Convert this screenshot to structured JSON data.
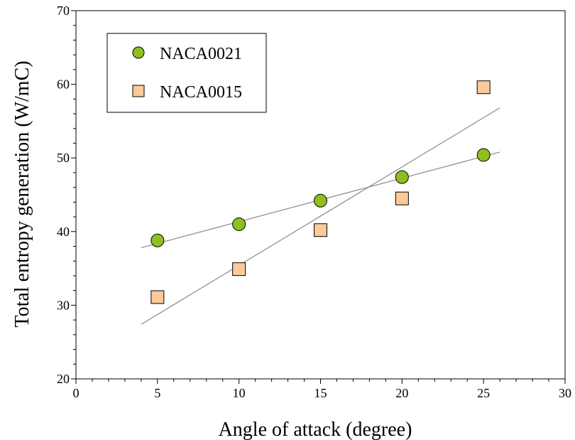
{
  "chart_data": {
    "type": "scatter",
    "xlabel": "Angle of attack (degree)",
    "ylabel": "Total entropy generation (W/mC)",
    "xlim": [
      0,
      30
    ],
    "ylim": [
      20,
      70
    ],
    "xticks": [
      "0",
      "5",
      "10",
      "15",
      "20",
      "25",
      "30"
    ],
    "yticks": [
      "20",
      "30",
      "40",
      "50",
      "60",
      "70"
    ],
    "legend_position": "top-left",
    "series": [
      {
        "name": "NACA0021",
        "marker": "circle",
        "color": "#8fbf1f",
        "x": [
          5,
          10,
          15,
          20,
          25
        ],
        "y": [
          38.8,
          41.0,
          44.2,
          47.4,
          50.4
        ],
        "trendline": [
          [
            4,
            37.8
          ],
          [
            26,
            50.8
          ]
        ]
      },
      {
        "name": "NACA0015",
        "marker": "square",
        "color": "#fcc99b",
        "x": [
          5,
          10,
          15,
          20,
          25
        ],
        "y": [
          31.1,
          34.9,
          40.2,
          44.5,
          59.6
        ],
        "trendline": [
          [
            4,
            27.4
          ],
          [
            26,
            56.8
          ]
        ]
      }
    ]
  }
}
